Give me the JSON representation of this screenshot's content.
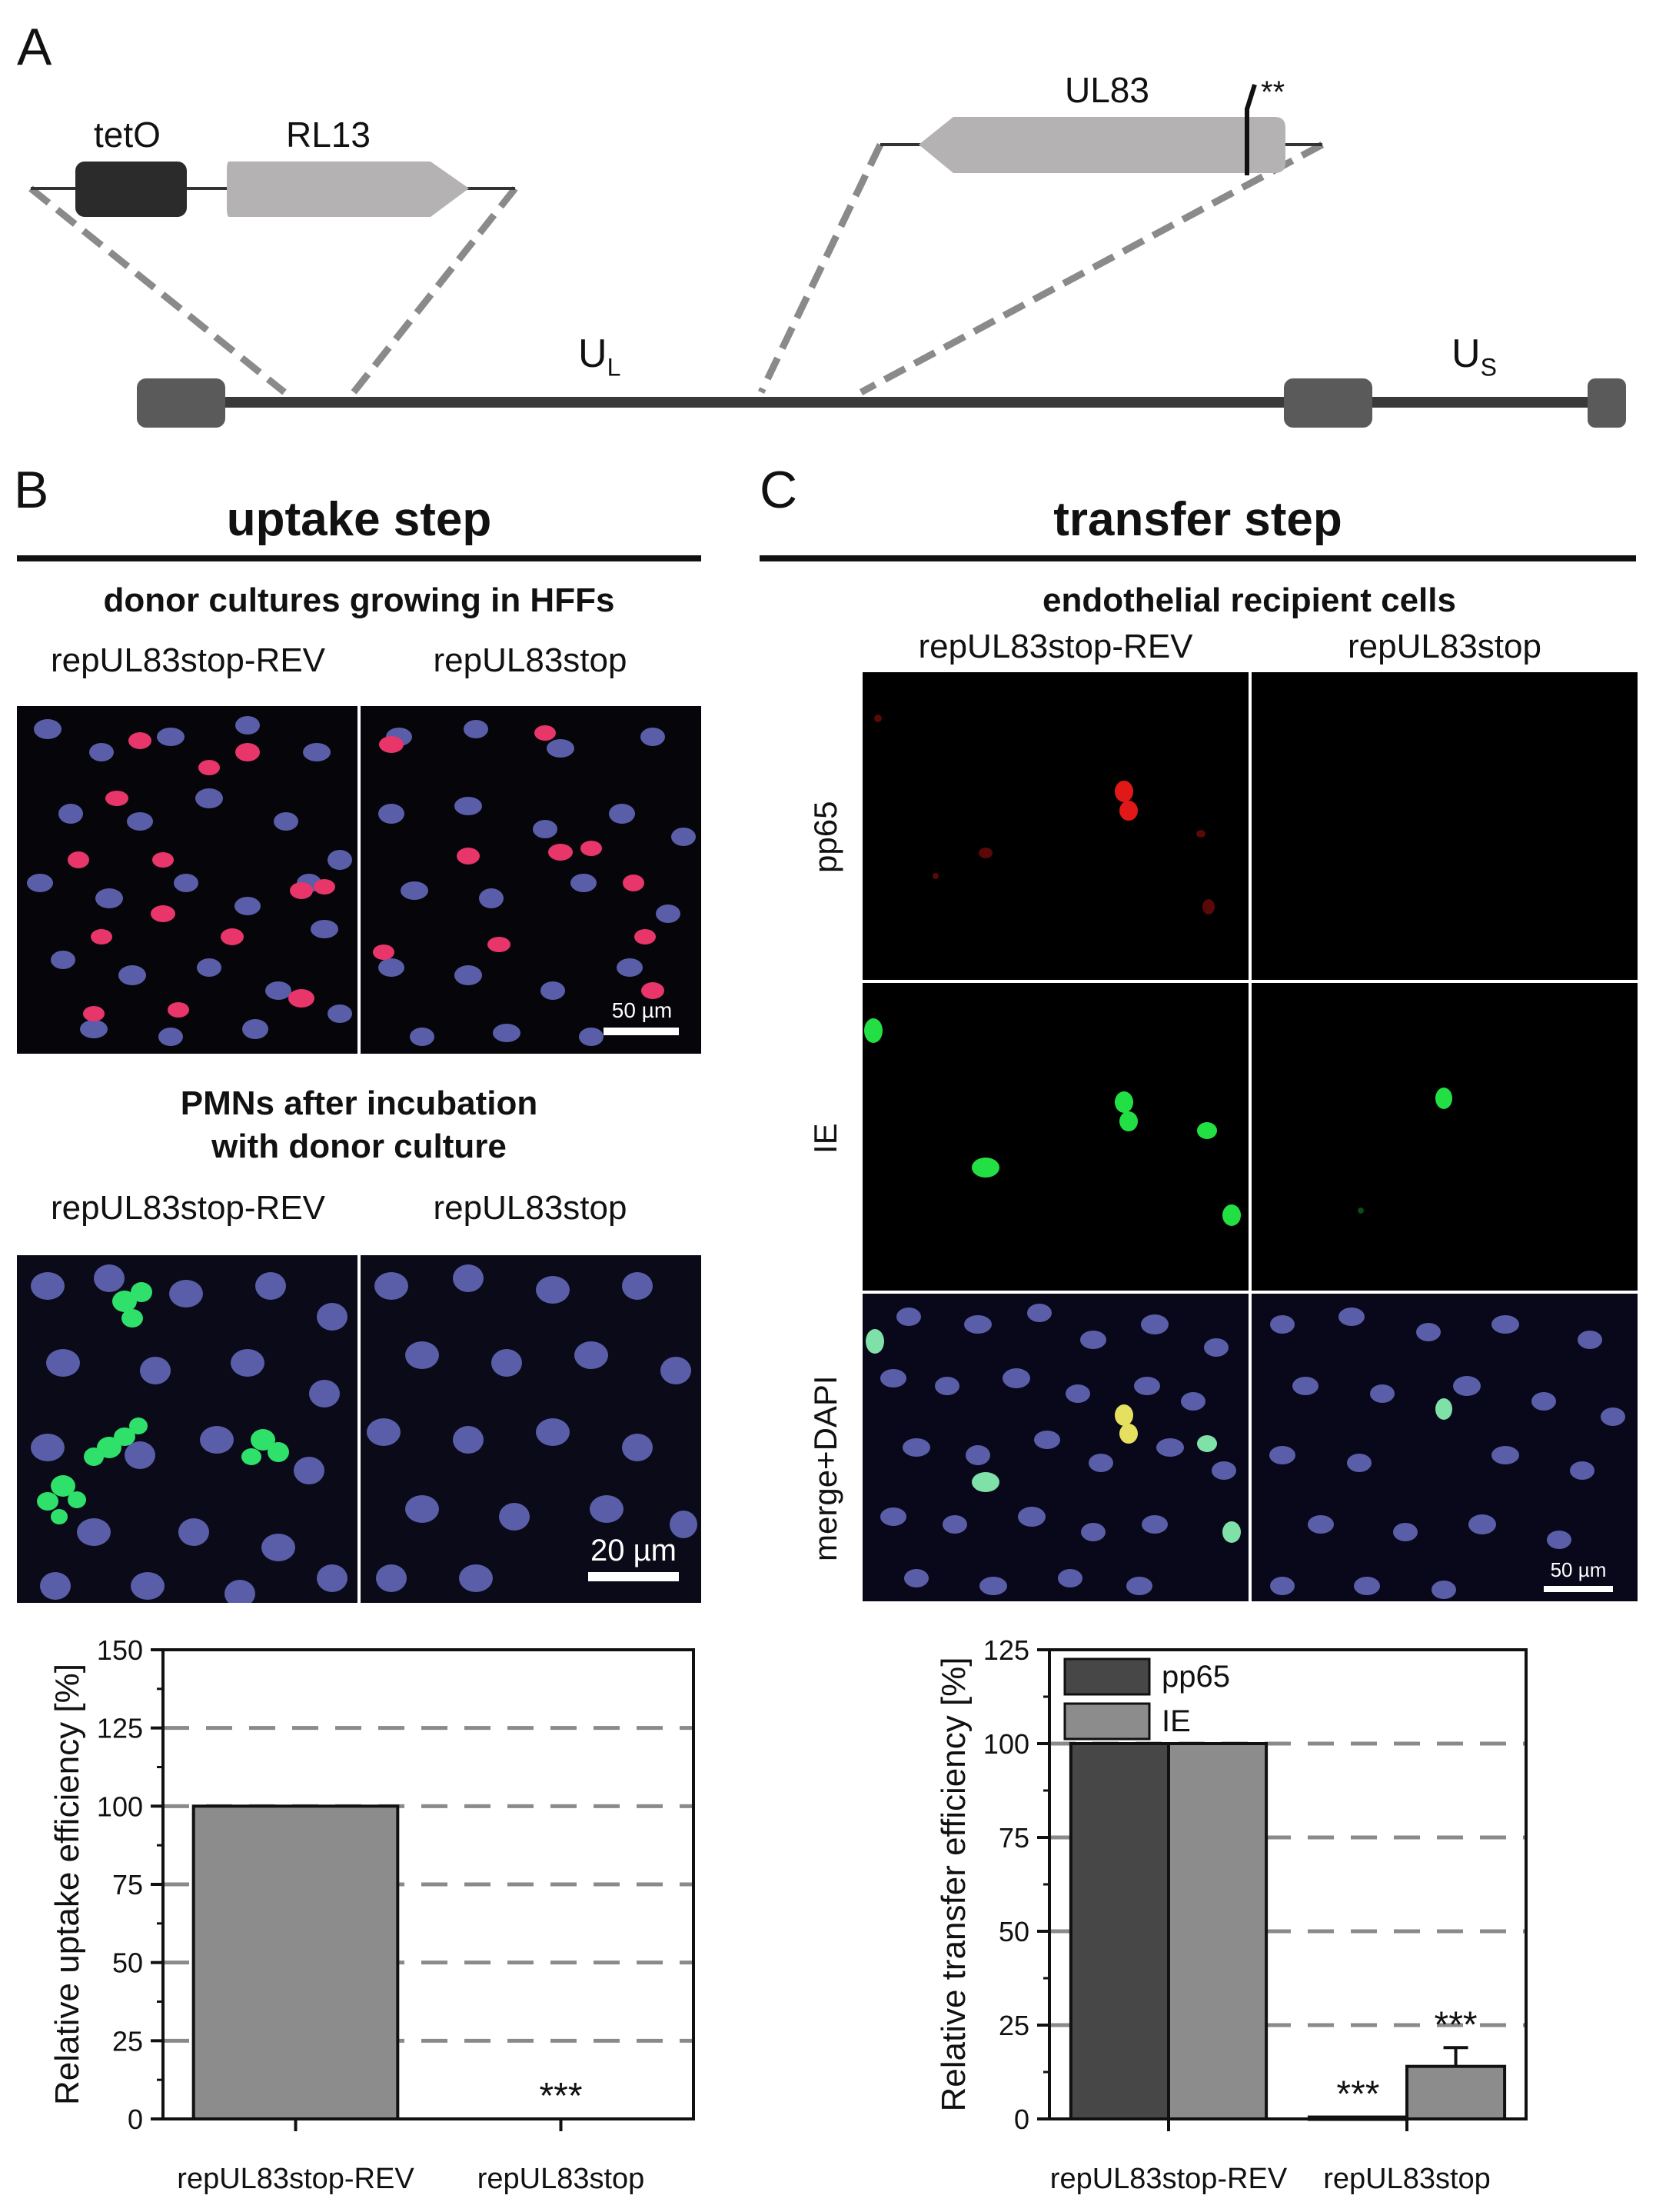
{
  "panel_a": {
    "letter": "A",
    "tetO_label": "tetO",
    "RL13_label": "RL13",
    "UL83_label": "UL83",
    "stop_mark": "**",
    "UL_label": "U",
    "UL_sub": "L",
    "US_label": "U",
    "US_sub": "S",
    "colors": {
      "tetO": "#2b2b2b",
      "gene": "#b4b2b2",
      "genome": "#3a3a3a",
      "repeat": "#5a5a5a",
      "dash": "#8a8a8a"
    }
  },
  "panel_b": {
    "letter": "B",
    "title": "uptake step",
    "donor_title": "donor cultures growing in HFFs",
    "donor_labels": [
      "repUL83stop-REV",
      "repUL83stop"
    ],
    "donor_scale": "50 µm",
    "pmn_title_line1": "PMNs after incubation",
    "pmn_title_line2": "with donor culture",
    "pmn_labels": [
      "repUL83stop-REV",
      "repUL83stop"
    ],
    "pmn_scale": "20 µm"
  },
  "panel_c": {
    "letter": "C",
    "title": "transfer step",
    "recipient_title": "endothelial recipient cells",
    "col_labels": [
      "repUL83stop-REV",
      "repUL83stop"
    ],
    "row_labels": [
      "pp65",
      "IE",
      "merge+DAPI"
    ],
    "scale": "50 µm"
  },
  "chart_data": [
    {
      "type": "bar",
      "ylabel": "Relative uptake efficiency [%]",
      "categories": [
        "repUL83stop-REV",
        "repUL83stop"
      ],
      "values": [
        100,
        0
      ],
      "ylim": [
        0,
        150
      ],
      "yticks": [
        "0",
        "25",
        "50",
        "75",
        "100",
        "125",
        "150"
      ],
      "annotations": [
        "",
        "***"
      ],
      "grid": "dashed horizontal",
      "bar_color": "#8c8c8c"
    },
    {
      "type": "bar",
      "ylabel": "Relative transfer efficiency [%]",
      "categories": [
        "repUL83stop-REV",
        "repUL83stop"
      ],
      "series": [
        {
          "name": "pp65",
          "values": [
            100,
            0.5
          ],
          "color": "#474747"
        },
        {
          "name": "IE",
          "values": [
            100,
            14
          ],
          "error": [
            0,
            5
          ],
          "color": "#8c8c8c"
        }
      ],
      "ylim": [
        0,
        125
      ],
      "yticks": [
        "0",
        "25",
        "50",
        "75",
        "100",
        "125"
      ],
      "annotations": {
        "pp65": [
          "",
          "***"
        ],
        "IE": [
          "",
          "***"
        ]
      },
      "legend": "top-left",
      "grid": "dashed horizontal"
    }
  ]
}
